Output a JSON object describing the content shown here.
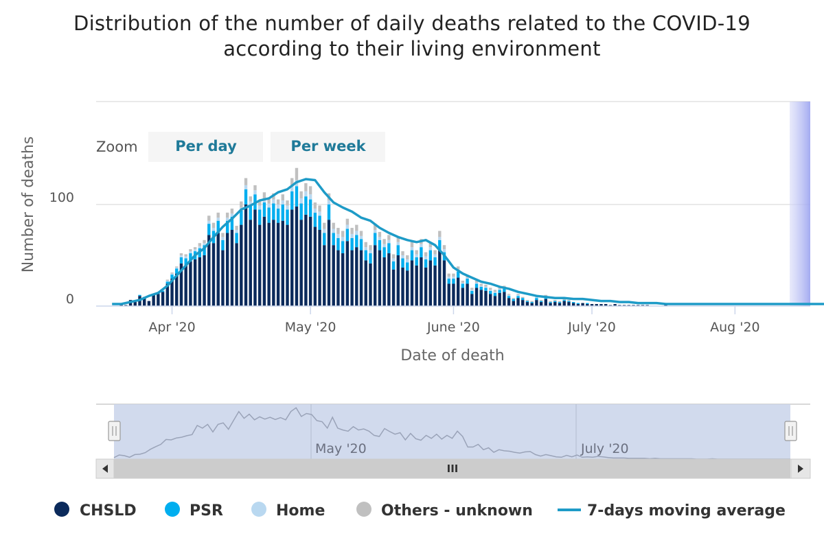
{
  "chart_data": {
    "type": "bar",
    "stacked": true,
    "title": "Distribution of the number of daily deaths related to the COVID-19",
    "subtitle": "according to their living environment",
    "xlabel": "Date of death",
    "ylabel": "Number of deaths",
    "ylim": [
      0,
      200
    ],
    "yticks": [
      0,
      100
    ],
    "x_start": "2020-03-16",
    "x_end": "2020-08-24",
    "xticks": [
      {
        "label": "Apr '20",
        "day": 16
      },
      {
        "label": "May '20",
        "day": 46
      },
      {
        "label": "June '20",
        "day": 77
      },
      {
        "label": "July '20",
        "day": 107
      },
      {
        "label": "Aug '20",
        "day": 138
      }
    ],
    "bar_days": [
      5,
      6,
      7,
      8,
      9,
      10,
      11,
      12,
      13,
      14,
      15,
      16,
      17,
      18,
      19,
      20,
      21,
      22,
      23,
      24,
      25,
      26,
      27,
      28,
      29,
      30,
      31,
      32,
      33,
      34,
      35,
      36,
      37,
      38,
      39,
      40,
      41,
      42,
      43,
      44,
      45,
      46,
      47,
      48,
      49,
      50,
      51,
      52,
      53,
      54,
      55,
      56,
      57,
      58,
      59,
      60,
      61,
      62,
      63,
      64,
      65,
      66,
      67,
      68,
      69,
      70,
      71,
      72,
      73,
      74,
      75,
      76,
      77,
      78,
      79,
      80,
      81,
      82,
      83,
      84,
      85,
      86,
      87,
      88,
      89,
      90,
      91,
      92,
      93,
      94,
      95,
      96,
      97,
      98,
      99,
      100,
      101,
      102,
      103,
      104,
      105,
      106,
      107,
      108,
      109,
      110,
      111,
      112,
      113,
      114,
      115,
      116,
      117,
      118,
      119,
      120,
      121,
      122,
      123,
      124,
      125,
      126,
      127,
      128,
      129,
      130,
      131,
      132,
      133,
      134,
      135,
      136,
      137,
      138,
      139,
      140,
      141,
      142,
      143,
      144,
      145,
      146,
      147,
      148,
      149,
      150,
      151,
      152,
      153,
      154,
      155,
      156,
      157,
      158,
      159
    ],
    "series": [
      {
        "name": "CHSLD",
        "color": "#0b2a5b",
        "values": [
          2,
          1,
          6,
          4,
          10,
          8,
          5,
          11,
          12,
          14,
          22,
          27,
          32,
          42,
          40,
          44,
          46,
          48,
          50,
          70,
          62,
          72,
          55,
          72,
          75,
          62,
          80,
          100,
          85,
          95,
          80,
          88,
          82,
          85,
          82,
          84,
          80,
          95,
          98,
          85,
          90,
          88,
          78,
          75,
          60,
          85,
          60,
          55,
          52,
          64,
          55,
          58,
          55,
          45,
          42,
          60,
          55,
          48,
          52,
          36,
          50,
          38,
          35,
          45,
          40,
          48,
          38,
          45,
          40,
          55,
          45,
          22,
          22,
          28,
          18,
          22,
          12,
          18,
          16,
          15,
          12,
          10,
          13,
          14,
          8,
          5,
          8,
          6,
          4,
          3,
          6,
          4,
          7,
          3,
          4,
          3,
          5,
          4,
          3,
          2,
          3,
          2,
          2,
          2,
          2,
          2,
          1,
          2,
          1,
          1,
          1,
          1,
          1,
          1,
          1,
          0,
          0,
          0,
          1,
          0,
          0,
          0,
          0,
          0,
          0,
          0,
          0,
          0,
          0,
          0,
          0,
          0,
          0,
          0,
          0,
          0,
          0,
          0,
          0,
          0,
          0,
          0,
          0,
          0,
          0,
          0,
          0,
          0,
          0,
          0,
          0,
          0,
          0,
          0,
          0
        ]
      },
      {
        "name": "PSR",
        "color": "#00aeef",
        "values": [
          0,
          0,
          0,
          0,
          1,
          1,
          0,
          1,
          1,
          1,
          2,
          4,
          5,
          6,
          7,
          8,
          8,
          9,
          10,
          11,
          12,
          12,
          10,
          12,
          13,
          10,
          14,
          15,
          14,
          15,
          15,
          14,
          15,
          16,
          14,
          16,
          15,
          18,
          20,
          16,
          18,
          17,
          14,
          14,
          12,
          15,
          12,
          12,
          12,
          12,
          12,
          12,
          11,
          10,
          10,
          12,
          10,
          10,
          10,
          8,
          10,
          9,
          8,
          10,
          8,
          10,
          8,
          10,
          8,
          10,
          8,
          5,
          5,
          6,
          4,
          5,
          3,
          4,
          3,
          3,
          3,
          3,
          3,
          3,
          2,
          2,
          2,
          2,
          1,
          1,
          2,
          1,
          2,
          1,
          1,
          1,
          1,
          1,
          1,
          1,
          0,
          1,
          0,
          0,
          0,
          0,
          0,
          0,
          0,
          0,
          0,
          0,
          0,
          0,
          0,
          0,
          0,
          0,
          0,
          0,
          0,
          0,
          0,
          0,
          0,
          0,
          0,
          0,
          0,
          0,
          0,
          0,
          0,
          0,
          0,
          0,
          0,
          0,
          0,
          0,
          0,
          0,
          0,
          0,
          0,
          0,
          0,
          0,
          0,
          0,
          0,
          0,
          0,
          0,
          0
        ]
      },
      {
        "name": "Home",
        "color": "#b9d8f0",
        "values": [
          0,
          0,
          0,
          0,
          0,
          0,
          0,
          0,
          0,
          1,
          1,
          1,
          1,
          2,
          2,
          2,
          2,
          2,
          2,
          3,
          3,
          3,
          3,
          3,
          3,
          3,
          3,
          4,
          4,
          4,
          4,
          4,
          4,
          4,
          4,
          4,
          4,
          5,
          6,
          5,
          5,
          5,
          4,
          4,
          4,
          4,
          4,
          4,
          4,
          4,
          4,
          4,
          3,
          3,
          3,
          3,
          3,
          3,
          3,
          3,
          3,
          3,
          3,
          3,
          3,
          3,
          3,
          3,
          3,
          3,
          3,
          2,
          2,
          2,
          1,
          1,
          1,
          1,
          1,
          1,
          1,
          1,
          1,
          1,
          1,
          0,
          1,
          0,
          0,
          0,
          1,
          0,
          1,
          0,
          0,
          0,
          0,
          0,
          0,
          0,
          0,
          0,
          0,
          0,
          0,
          0,
          0,
          0,
          0,
          0,
          0,
          0,
          0,
          0,
          0,
          0,
          0,
          0,
          0,
          0,
          0,
          0,
          0,
          0,
          0,
          0,
          0,
          0,
          0,
          0,
          0,
          0,
          0,
          0,
          0,
          0,
          0,
          0,
          0,
          0,
          0,
          0,
          0,
          0,
          0,
          0,
          0,
          0,
          0,
          0,
          0,
          0,
          0,
          0,
          0
        ]
      },
      {
        "name": "Others - unknown",
        "color": "#c0c0c0",
        "values": [
          0,
          0,
          0,
          0,
          0,
          0,
          0,
          0,
          0,
          1,
          1,
          1,
          1,
          2,
          2,
          2,
          2,
          3,
          3,
          5,
          5,
          5,
          4,
          5,
          5,
          4,
          6,
          7,
          5,
          5,
          5,
          6,
          5,
          6,
          5,
          6,
          5,
          8,
          12,
          7,
          8,
          8,
          6,
          6,
          6,
          7,
          6,
          6,
          6,
          6,
          6,
          6,
          5,
          5,
          5,
          6,
          5,
          5,
          5,
          4,
          5,
          4,
          4,
          5,
          4,
          5,
          4,
          5,
          4,
          6,
          4,
          3,
          3,
          3,
          2,
          2,
          2,
          2,
          2,
          2,
          2,
          2,
          2,
          2,
          1,
          1,
          1,
          1,
          1,
          1,
          1,
          1,
          1,
          1,
          1,
          1,
          1,
          1,
          0,
          0,
          0,
          0,
          0,
          0,
          0,
          0,
          0,
          0,
          0,
          0,
          0,
          0,
          0,
          0,
          0,
          0,
          0,
          0,
          0,
          0,
          0,
          0,
          0,
          0,
          0,
          0,
          0,
          0,
          0,
          0,
          0,
          0,
          0,
          0,
          0,
          0,
          0,
          0,
          0,
          0,
          0,
          0,
          0,
          0,
          0,
          0,
          0,
          0,
          0,
          0,
          0,
          0,
          0,
          0,
          0
        ]
      }
    ],
    "moving_average": {
      "name": "7-days moving average",
      "color": "#1e9bc7",
      "points": [
        [
          3,
          2
        ],
        [
          5,
          2
        ],
        [
          7,
          4
        ],
        [
          9,
          6
        ],
        [
          11,
          10
        ],
        [
          13,
          13
        ],
        [
          15,
          20
        ],
        [
          17,
          30
        ],
        [
          19,
          40
        ],
        [
          21,
          50
        ],
        [
          23,
          57
        ],
        [
          25,
          68
        ],
        [
          27,
          78
        ],
        [
          29,
          86
        ],
        [
          31,
          95
        ],
        [
          33,
          99
        ],
        [
          35,
          104
        ],
        [
          37,
          106
        ],
        [
          39,
          112
        ],
        [
          41,
          115
        ],
        [
          43,
          122
        ],
        [
          45,
          125
        ],
        [
          47,
          124
        ],
        [
          49,
          112
        ],
        [
          51,
          102
        ],
        [
          53,
          97
        ],
        [
          55,
          93
        ],
        [
          57,
          87
        ],
        [
          59,
          84
        ],
        [
          61,
          77
        ],
        [
          63,
          72
        ],
        [
          65,
          68
        ],
        [
          67,
          65
        ],
        [
          69,
          63
        ],
        [
          71,
          65
        ],
        [
          73,
          60
        ],
        [
          75,
          50
        ],
        [
          77,
          38
        ],
        [
          79,
          32
        ],
        [
          81,
          28
        ],
        [
          83,
          24
        ],
        [
          85,
          22
        ],
        [
          87,
          19
        ],
        [
          89,
          17
        ],
        [
          91,
          14
        ],
        [
          93,
          12
        ],
        [
          95,
          10
        ],
        [
          97,
          9
        ],
        [
          99,
          8
        ],
        [
          101,
          8
        ],
        [
          103,
          7
        ],
        [
          105,
          7
        ],
        [
          107,
          6
        ],
        [
          109,
          5
        ],
        [
          111,
          5
        ],
        [
          113,
          4
        ],
        [
          115,
          4
        ],
        [
          117,
          3
        ],
        [
          119,
          3
        ],
        [
          121,
          3
        ],
        [
          123,
          2
        ],
        [
          125,
          2
        ],
        [
          130,
          2
        ],
        [
          135,
          2
        ],
        [
          140,
          2
        ],
        [
          145,
          2
        ],
        [
          150,
          2
        ],
        [
          155,
          2
        ],
        [
          159,
          2
        ]
      ]
    }
  },
  "zoom": {
    "label": "Zoom",
    "buttons": [
      "Per day",
      "Per week"
    ]
  },
  "navigator": {
    "labels": [
      {
        "label": "May '20",
        "day": 46
      },
      {
        "label": "July '20",
        "day": 107
      }
    ],
    "scroll_grip": "III"
  },
  "legend": [
    {
      "label": "CHSLD",
      "color": "#0b2a5b",
      "symbol": "circle"
    },
    {
      "label": "PSR",
      "color": "#00aeef",
      "symbol": "circle"
    },
    {
      "label": "Home",
      "color": "#b9d8f0",
      "symbol": "circle"
    },
    {
      "label": "Others - unknown",
      "color": "#c0c0c0",
      "symbol": "circle"
    },
    {
      "label": "7-days moving average",
      "color": "#1e9bc7",
      "symbol": "line"
    }
  ],
  "colors": {
    "navigator_mask": "#c9d3ea",
    "scrollbar_track": "#d0d0d0",
    "gridline": "#e2e2e2"
  }
}
